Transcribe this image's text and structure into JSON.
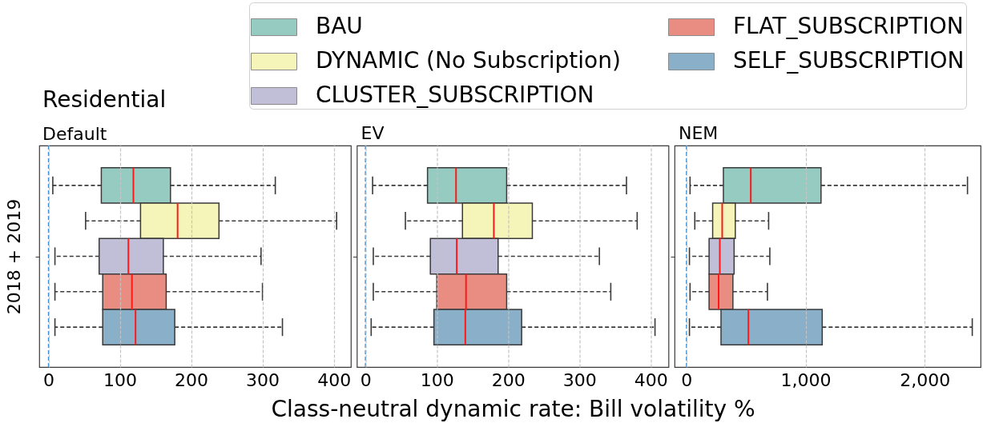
{
  "chart_data": [
    {
      "type": "box",
      "title": "Residential",
      "subtitle": "Default",
      "orientation": "horizontal",
      "categories": [
        null
      ],
      "ylabel": "2018 + 2019",
      "series": [
        {
          "color": "#96cbc1",
          "boxes": [
            {
              "low": 6,
              "q1": 74,
              "median": 119,
              "q3": 171,
              "high": 318
            }
          ]
        },
        {
          "color": "#f5f5b9",
          "boxes": [
            {
              "low": 52,
              "q1": 129,
              "median": 181,
              "q3": 239,
              "high": 404
            }
          ]
        },
        {
          "color": "#c1bed7",
          "boxes": [
            {
              "low": 9,
              "q1": 71,
              "median": 112,
              "q3": 161,
              "high": 298
            }
          ]
        },
        {
          "color": "#e98d82",
          "boxes": [
            {
              "low": 9,
              "q1": 76,
              "median": 117,
              "q3": 165,
              "high": 300
            }
          ]
        },
        {
          "color": "#8aafc9",
          "boxes": [
            {
              "low": 9,
              "q1": 76,
              "median": 122,
              "q3": 177,
              "high": 328
            }
          ]
        }
      ],
      "xlim": [
        -13,
        424
      ],
      "xticks": [
        0,
        100,
        200,
        300,
        400
      ],
      "grid": "x",
      "ref_lines": [
        {
          "axis": "x",
          "value": 0,
          "color": "#3c8fd6",
          "line_style": "dashed"
        }
      ]
    },
    {
      "type": "box",
      "title": "EV",
      "orientation": "horizontal",
      "categories": [
        null
      ],
      "xlabel": "Class-neutral dynamic rate: Bill volatility %",
      "series": [
        {
          "color": "#96cbc1",
          "boxes": [
            {
              "low": 10,
              "q1": 87,
              "median": 127,
              "q3": 198,
              "high": 366
            }
          ]
        },
        {
          "color": "#f5f5b9",
          "boxes": [
            {
              "low": 56,
              "q1": 136,
              "median": 180,
              "q3": 234,
              "high": 381
            }
          ]
        },
        {
          "color": "#c1bed7",
          "boxes": [
            {
              "low": 11,
              "q1": 91,
              "median": 128,
              "q3": 186,
              "high": 328
            }
          ]
        },
        {
          "color": "#e98d82",
          "boxes": [
            {
              "low": 11,
              "q1": 100,
              "median": 141,
              "q3": 198,
              "high": 344
            }
          ]
        },
        {
          "color": "#8aafc9",
          "boxes": [
            {
              "low": 8,
              "q1": 96,
              "median": 140,
              "q3": 219,
              "high": 406
            }
          ]
        }
      ],
      "xlim": [
        -12,
        425
      ],
      "xticks": [
        0,
        100,
        200,
        300,
        400
      ],
      "grid": "x",
      "tick_labels": "x",
      "ref_lines": [
        {
          "axis": "x",
          "value": 0,
          "color": "#3c8fd6",
          "line_style": "dashed"
        }
      ]
    },
    {
      "type": "box",
      "title": "NEM",
      "orientation": "horizontal",
      "categories": [
        null
      ],
      "series": [
        {
          "name": "BAU",
          "color": "#96cbc1",
          "boxes": [
            {
              "low": 30,
              "q1": 310,
              "median": 540,
              "q3": 1130,
              "high": 2360
            }
          ]
        },
        {
          "name": "DYNAMIC (No Subscription)",
          "color": "#f5f5b9",
          "boxes": [
            {
              "low": 70,
              "q1": 220,
              "median": 300,
              "q3": 410,
              "high": 690
            }
          ]
        },
        {
          "name": "CLUSTER_SUBSCRIPTION",
          "color": "#c1bed7",
          "boxes": [
            {
              "low": 25,
              "q1": 190,
              "median": 280,
              "q3": 400,
              "high": 700
            }
          ]
        },
        {
          "name": "FLAT_SUBSCRIPTION",
          "color": "#e98d82",
          "boxes": [
            {
              "low": 30,
              "q1": 190,
              "median": 270,
              "q3": 390,
              "high": 680
            }
          ]
        },
        {
          "name": "SELF_SUBSCRIPTION",
          "color": "#8aafc9",
          "boxes": [
            {
              "low": 25,
              "q1": 290,
              "median": 520,
              "q3": 1140,
              "high": 2400
            }
          ]
        }
      ],
      "xlim": [
        -100,
        2470
      ],
      "xticks": [
        0,
        {
          "value": 1000,
          "label": "1,000"
        },
        {
          "value": 2000,
          "label": "2,000"
        }
      ],
      "grid": "x",
      "tick_labels": "x",
      "legend": "top left",
      "ref_lines": [
        {
          "axis": "x",
          "value": 0,
          "color": "#3c8fd6",
          "line_style": "dashed"
        }
      ]
    }
  ]
}
